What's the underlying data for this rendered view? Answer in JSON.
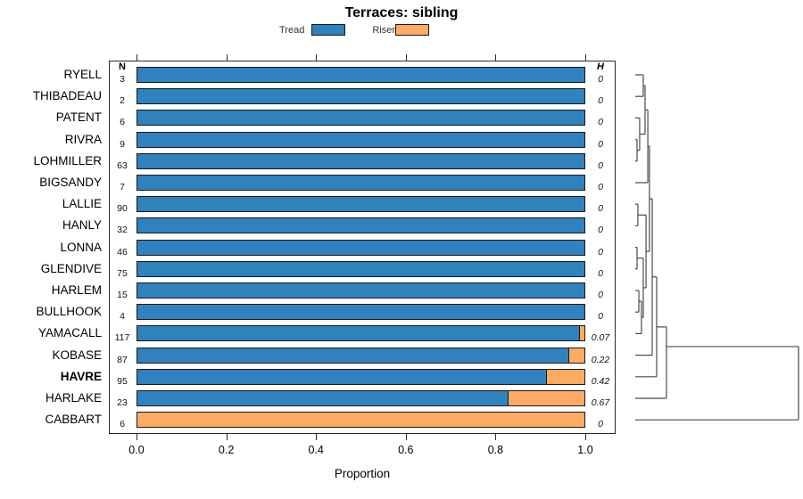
{
  "title": "Terraces: sibling",
  "legend": {
    "items": [
      {
        "label": "Tread",
        "color": "#3181bc"
      },
      {
        "label": "Riser",
        "color": "#fcab64"
      }
    ]
  },
  "columns": {
    "n_header": "N",
    "h_header": "H"
  },
  "x_axis": {
    "label": "Proportion",
    "tick_labels": [
      "0.0",
      "0.2",
      "0.4",
      "0.6",
      "0.8",
      "1.0"
    ],
    "range": [
      0.0,
      1.0
    ]
  },
  "rows": [
    {
      "label": "RYELL",
      "n": "3",
      "tread": 1.0,
      "riser": 0.0,
      "h": "0",
      "emphasis": false
    },
    {
      "label": "THIBADEAU",
      "n": "2",
      "tread": 1.0,
      "riser": 0.0,
      "h": "0",
      "emphasis": false
    },
    {
      "label": "PATENT",
      "n": "6",
      "tread": 1.0,
      "riser": 0.0,
      "h": "0",
      "emphasis": false
    },
    {
      "label": "RIVRA",
      "n": "9",
      "tread": 1.0,
      "riser": 0.0,
      "h": "0",
      "emphasis": false
    },
    {
      "label": "LOHMILLER",
      "n": "63",
      "tread": 1.0,
      "riser": 0.0,
      "h": "0",
      "emphasis": false
    },
    {
      "label": "BIGSANDY",
      "n": "7",
      "tread": 1.0,
      "riser": 0.0,
      "h": "0",
      "emphasis": false
    },
    {
      "label": "LALLIE",
      "n": "90",
      "tread": 1.0,
      "riser": 0.0,
      "h": "0",
      "emphasis": false
    },
    {
      "label": "HANLY",
      "n": "32",
      "tread": 1.0,
      "riser": 0.0,
      "h": "0",
      "emphasis": false
    },
    {
      "label": "LONNA",
      "n": "46",
      "tread": 1.0,
      "riser": 0.0,
      "h": "0",
      "emphasis": false
    },
    {
      "label": "GLENDIVE",
      "n": "75",
      "tread": 1.0,
      "riser": 0.0,
      "h": "0",
      "emphasis": false
    },
    {
      "label": "HARLEM",
      "n": "15",
      "tread": 1.0,
      "riser": 0.0,
      "h": "0",
      "emphasis": false
    },
    {
      "label": "BULLHOOK",
      "n": "4",
      "tread": 1.0,
      "riser": 0.0,
      "h": "0",
      "emphasis": false
    },
    {
      "label": "YAMACALL",
      "n": "117",
      "tread": 0.988,
      "riser": 0.012,
      "h": "0.07",
      "emphasis": false
    },
    {
      "label": "KOBASE",
      "n": "87",
      "tread": 0.965,
      "riser": 0.035,
      "h": "0.22",
      "emphasis": false
    },
    {
      "label": "HAVRE",
      "n": "95",
      "tread": 0.915,
      "riser": 0.085,
      "h": "0.42",
      "emphasis": true
    },
    {
      "label": "HARLAKE",
      "n": "23",
      "tread": 0.83,
      "riser": 0.17,
      "h": "0.67",
      "emphasis": false
    },
    {
      "label": "CABBART",
      "n": "6",
      "tread": 0.0,
      "riser": 1.0,
      "h": "0",
      "emphasis": false
    }
  ],
  "dendrogram": {
    "segments": [
      [
        0,
        1,
        0.049,
        1
      ],
      [
        0,
        2,
        0.049,
        2
      ],
      [
        0.049,
        1,
        0.049,
        2
      ],
      [
        0,
        4,
        0.011,
        4
      ],
      [
        0,
        5,
        0.011,
        5
      ],
      [
        0.011,
        4,
        0.011,
        5
      ],
      [
        0,
        3,
        0.027,
        3
      ],
      [
        0.011,
        4.5,
        0.027,
        4.5
      ],
      [
        0.027,
        3,
        0.027,
        4.5
      ],
      [
        0.049,
        1.5,
        0.06,
        1.5
      ],
      [
        0.027,
        3.75,
        0.06,
        3.75
      ],
      [
        0.06,
        1.5,
        0.06,
        3.75
      ],
      [
        0.06,
        2.625,
        0.077,
        2.625
      ],
      [
        0,
        6,
        0.077,
        6
      ],
      [
        0.077,
        2.625,
        0.077,
        6
      ],
      [
        0,
        7,
        0.016,
        7
      ],
      [
        0,
        8,
        0.016,
        8
      ],
      [
        0.016,
        7,
        0.016,
        8
      ],
      [
        0,
        9,
        0.011,
        9
      ],
      [
        0,
        10,
        0.011,
        10
      ],
      [
        0.011,
        9,
        0.011,
        10
      ],
      [
        0,
        11,
        0.022,
        11
      ],
      [
        0,
        12,
        0.022,
        12
      ],
      [
        0.022,
        11,
        0.022,
        12
      ],
      [
        0.022,
        11.5,
        0.038,
        11.5
      ],
      [
        0,
        13,
        0.038,
        13
      ],
      [
        0.038,
        11.5,
        0.038,
        13
      ],
      [
        0.011,
        9.5,
        0.049,
        9.5
      ],
      [
        0.038,
        12.25,
        0.049,
        12.25
      ],
      [
        0.049,
        9.5,
        0.049,
        12.25
      ],
      [
        0.016,
        7.5,
        0.066,
        7.5
      ],
      [
        0.049,
        10.875,
        0.066,
        10.875
      ],
      [
        0.066,
        7.5,
        0.066,
        10.875
      ],
      [
        0.077,
        4.31,
        0.087,
        4.31
      ],
      [
        0.066,
        9.19,
        0.087,
        9.19
      ],
      [
        0.087,
        4.31,
        0.087,
        9.19
      ],
      [
        0.087,
        6.75,
        0.104,
        6.75
      ],
      [
        0,
        14,
        0.104,
        14
      ],
      [
        0.104,
        6.75,
        0.104,
        14
      ],
      [
        0.104,
        10.37,
        0.131,
        10.37
      ],
      [
        0,
        15,
        0.131,
        15
      ],
      [
        0.131,
        10.37,
        0.131,
        15
      ],
      [
        0.131,
        12.69,
        0.191,
        12.69
      ],
      [
        0,
        16,
        0.191,
        16
      ],
      [
        0.191,
        12.69,
        0.191,
        16
      ],
      [
        0.191,
        13.6,
        1.0,
        13.6
      ],
      [
        0,
        17,
        1.0,
        17
      ],
      [
        1.0,
        13.6,
        1.0,
        17
      ]
    ]
  },
  "chart_data": {
    "type": "bar",
    "orientation": "horizontal",
    "stacked": true,
    "title": "Terraces: sibling",
    "xlabel": "Proportion",
    "xlim": [
      0.0,
      1.0
    ],
    "x_ticks": [
      0.0,
      0.2,
      0.4,
      0.6,
      0.8,
      1.0
    ],
    "legend_position": "top",
    "categories": [
      "RYELL",
      "THIBADEAU",
      "PATENT",
      "RIVRA",
      "LOHMILLER",
      "BIGSANDY",
      "LALLIE",
      "HANLY",
      "LONNA",
      "GLENDIVE",
      "HARLEM",
      "BULLHOOK",
      "YAMACALL",
      "KOBASE",
      "HAVRE",
      "HARLAKE",
      "CABBART"
    ],
    "series": [
      {
        "name": "Tread",
        "color": "#3181bc",
        "values": [
          1.0,
          1.0,
          1.0,
          1.0,
          1.0,
          1.0,
          1.0,
          1.0,
          1.0,
          1.0,
          1.0,
          1.0,
          0.988,
          0.965,
          0.915,
          0.83,
          0.0
        ]
      },
      {
        "name": "Riser",
        "color": "#fcab64",
        "values": [
          0.0,
          0.0,
          0.0,
          0.0,
          0.0,
          0.0,
          0.0,
          0.0,
          0.0,
          0.0,
          0.0,
          0.0,
          0.012,
          0.035,
          0.085,
          0.17,
          1.0
        ]
      }
    ],
    "annotations": {
      "N": [
        3,
        2,
        6,
        9,
        63,
        7,
        90,
        32,
        46,
        75,
        15,
        4,
        117,
        87,
        95,
        23,
        6
      ],
      "H": [
        0,
        0,
        0,
        0,
        0,
        0,
        0,
        0,
        0,
        0,
        0,
        0,
        0.07,
        0.22,
        0.42,
        0.67,
        0
      ]
    },
    "right_margin": "hierarchical clustering dendrogram, root joins CABBART last"
  }
}
